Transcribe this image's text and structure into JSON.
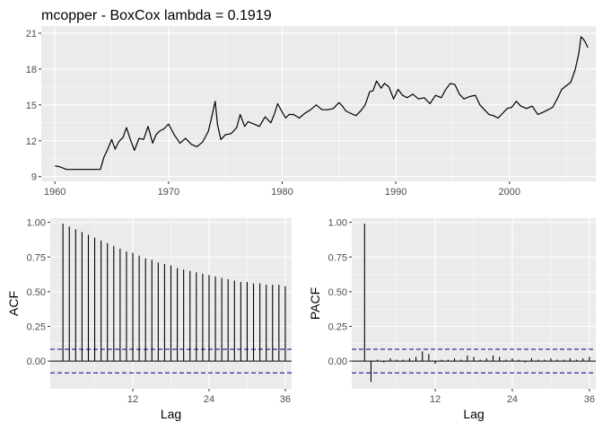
{
  "colors": {
    "panel_background": "#ebebeb",
    "grid_major": "#ffffff",
    "series_line": "#000000",
    "confidence_line": "#00008b",
    "tick_text": "#4d4d4d"
  },
  "chart_data": [
    {
      "type": "line",
      "title": "mcopper - BoxCox lambda =  0.1919",
      "xlabel": "",
      "ylabel": "",
      "xlim": [
        1958.8,
        2007.6
      ],
      "ylim": [
        8.6,
        21.6
      ],
      "x_ticks": [
        1960,
        1970,
        1980,
        1990,
        2000
      ],
      "x_tick_labels": [
        "1960",
        "1970",
        "1980",
        "1990",
        "2000"
      ],
      "y_ticks": [
        9,
        12,
        15,
        18,
        21
      ],
      "y_tick_labels": [
        "9",
        "12",
        "15",
        "18",
        "21"
      ],
      "grid": true,
      "series": [
        {
          "x": [
            1960,
            1960.5,
            1961,
            1961.5,
            1962,
            1963,
            1964,
            1964.3,
            1964.6,
            1965,
            1965.3,
            1965.6,
            1966,
            1966.3,
            1966.6,
            1967,
            1967.4,
            1967.8,
            1968.2,
            1968.6,
            1968.9,
            1969.2,
            1969.6,
            1970,
            1970.5,
            1971,
            1971.5,
            1972,
            1972.5,
            1973,
            1973.5,
            1973.8,
            1974.1,
            1974.3,
            1974.6,
            1975,
            1975.5,
            1976,
            1976.3,
            1976.7,
            1977,
            1977.5,
            1978,
            1978.5,
            1979,
            1979.3,
            1979.6,
            1980,
            1980.3,
            1980.6,
            1981,
            1981.5,
            1982,
            1982.5,
            1983,
            1983.5,
            1984,
            1984.5,
            1985,
            1985.3,
            1985.6,
            1986,
            1986.5,
            1987,
            1987.3,
            1987.7,
            1988,
            1988.3,
            1988.7,
            1989,
            1989.4,
            1989.8,
            1990.2,
            1990.6,
            1991,
            1991.5,
            1992,
            1992.5,
            1993,
            1993.5,
            1994,
            1994.4,
            1994.8,
            1995.2,
            1995.6,
            1996,
            1996.5,
            1997,
            1997.4,
            1997.8,
            1998.2,
            1998.6,
            1999,
            1999.4,
            1999.8,
            2000.2,
            2000.6,
            2001,
            2001.5,
            2002,
            2002.5,
            2003,
            2003.4,
            2003.8,
            2004.2,
            2004.6,
            2005,
            2005.4,
            2005.8,
            2006.1,
            2006.3,
            2006.5,
            2006.7,
            2006.9
          ],
          "values": [
            9.9,
            9.8,
            9.6,
            9.6,
            9.6,
            9.6,
            9.6,
            10.6,
            11.2,
            12.1,
            11.3,
            11.9,
            12.3,
            13.1,
            12.2,
            11.2,
            12.2,
            12.1,
            13.2,
            11.8,
            12.5,
            12.8,
            13.0,
            13.4,
            12.5,
            11.8,
            12.2,
            11.7,
            11.5,
            11.9,
            12.8,
            14.0,
            15.3,
            13.4,
            12.1,
            12.5,
            12.6,
            13.1,
            14.2,
            13.2,
            13.6,
            13.4,
            13.2,
            14.0,
            13.5,
            14.2,
            15.1,
            14.4,
            13.9,
            14.2,
            14.2,
            13.9,
            14.3,
            14.6,
            15.0,
            14.6,
            14.6,
            14.7,
            15.2,
            14.9,
            14.5,
            14.3,
            14.1,
            14.6,
            15.0,
            16.1,
            16.2,
            17.0,
            16.4,
            16.8,
            16.5,
            15.5,
            16.3,
            15.8,
            15.6,
            15.9,
            15.5,
            15.6,
            15.1,
            15.8,
            15.6,
            16.3,
            16.8,
            16.7,
            15.9,
            15.5,
            15.7,
            15.8,
            15.0,
            14.6,
            14.2,
            14.1,
            13.9,
            14.3,
            14.7,
            14.8,
            15.3,
            14.9,
            14.7,
            14.9,
            14.2,
            14.4,
            14.6,
            14.8,
            15.5,
            16.3,
            16.6,
            16.9,
            18.0,
            19.3,
            20.7,
            20.5,
            20.2,
            19.8
          ]
        }
      ]
    },
    {
      "type": "bar",
      "xlabel": "Lag",
      "ylabel": "ACF",
      "xlim": [
        -1,
        37
      ],
      "ylim": [
        -0.2,
        1.03
      ],
      "x_ticks": [
        12,
        24,
        36
      ],
      "x_tick_labels": [
        "12",
        "24",
        "36"
      ],
      "y_ticks": [
        0,
        0.25,
        0.5,
        0.75,
        1.0
      ],
      "y_tick_labels": [
        "0.00",
        "0.25",
        "0.50",
        "0.75",
        "1.00"
      ],
      "grid": true,
      "categories": [
        1,
        2,
        3,
        4,
        5,
        6,
        7,
        8,
        9,
        10,
        11,
        12,
        13,
        14,
        15,
        16,
        17,
        18,
        19,
        20,
        21,
        22,
        23,
        24,
        25,
        26,
        27,
        28,
        29,
        30,
        31,
        32,
        33,
        34,
        35,
        36
      ],
      "values": [
        0.99,
        0.97,
        0.95,
        0.93,
        0.91,
        0.89,
        0.87,
        0.85,
        0.83,
        0.81,
        0.79,
        0.78,
        0.76,
        0.74,
        0.73,
        0.71,
        0.7,
        0.69,
        0.67,
        0.66,
        0.65,
        0.64,
        0.63,
        0.62,
        0.61,
        0.6,
        0.59,
        0.58,
        0.57,
        0.57,
        0.56,
        0.56,
        0.55,
        0.55,
        0.55,
        0.54
      ],
      "confidence_bound": 0.085
    },
    {
      "type": "bar",
      "xlabel": "Lag",
      "ylabel": "PACF",
      "xlim": [
        -1,
        37
      ],
      "ylim": [
        -0.2,
        1.03
      ],
      "x_ticks": [
        12,
        24,
        36
      ],
      "x_tick_labels": [
        "12",
        "24",
        "36"
      ],
      "y_ticks": [
        0,
        0.25,
        0.5,
        0.75,
        1.0
      ],
      "y_tick_labels": [
        "0.00",
        "0.25",
        "0.50",
        "0.75",
        "1.00"
      ],
      "grid": true,
      "categories": [
        1,
        2,
        3,
        4,
        5,
        6,
        7,
        8,
        9,
        10,
        11,
        12,
        13,
        14,
        15,
        16,
        17,
        18,
        19,
        20,
        21,
        22,
        23,
        24,
        25,
        26,
        27,
        28,
        29,
        30,
        31,
        32,
        33,
        34,
        35,
        36
      ],
      "values": [
        0.99,
        -0.15,
        0.01,
        -0.01,
        0.02,
        0.01,
        0.01,
        0.02,
        0.03,
        0.07,
        0.05,
        -0.02,
        0.01,
        0.01,
        0.02,
        0.01,
        0.04,
        0.03,
        0.01,
        0.02,
        0.04,
        0.03,
        0.01,
        0.02,
        0.01,
        -0.01,
        0.02,
        0.01,
        0.01,
        0.02,
        0.01,
        0.01,
        0.02,
        0.01,
        0.02,
        0.03
      ],
      "confidence_bound": 0.085
    }
  ]
}
